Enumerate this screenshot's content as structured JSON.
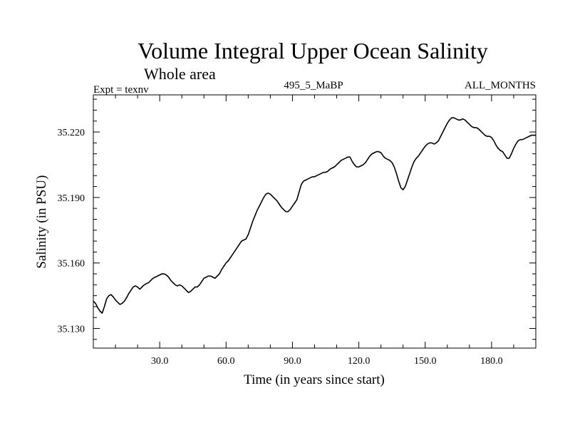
{
  "chart_data": {
    "type": "line",
    "title": "Volume Integral Upper Ocean Salinity",
    "subtitle": "Whole area",
    "expt_label": "Expt = texnv",
    "run_label": "495_5_MaBP",
    "months_label": "ALL_MONTHS",
    "xlabel": "Time (in years since start)",
    "ylabel": "Salinity (in PSU)",
    "xlim": [
      0,
      200
    ],
    "ylim": [
      35.121,
      35.237
    ],
    "x_ticks": [
      30,
      60,
      90,
      120,
      150,
      180
    ],
    "x_tick_labels": [
      "30.0",
      "60.0",
      "90.0",
      "120.0",
      "150.0",
      "180.0"
    ],
    "y_ticks": [
      35.13,
      35.16,
      35.19,
      35.22
    ],
    "y_tick_labels": [
      "35.130",
      "35.160",
      "35.190",
      "35.220"
    ],
    "series": [
      {
        "name": "Salinity",
        "color": "#000000",
        "x": [
          0,
          1,
          2,
          3,
          4,
          5,
          6,
          7,
          8,
          9,
          10,
          11,
          12,
          13,
          14,
          15,
          16,
          17,
          18,
          19,
          20,
          21,
          22,
          23,
          24,
          25,
          26,
          27,
          28,
          29,
          30,
          31,
          32,
          33,
          34,
          35,
          36,
          37,
          38,
          39,
          40,
          41,
          42,
          43,
          44,
          45,
          46,
          47,
          48,
          49,
          50,
          51,
          52,
          53,
          54,
          55,
          56,
          57,
          58,
          59,
          60,
          61,
          62,
          63,
          64,
          65,
          66,
          67,
          68,
          69,
          70,
          71,
          72,
          73,
          74,
          75,
          76,
          77,
          78,
          79,
          80,
          81,
          82,
          83,
          84,
          85,
          86,
          87,
          88,
          89,
          90,
          91,
          92,
          93,
          94,
          95,
          96,
          97,
          98,
          99,
          100,
          101,
          102,
          103,
          104,
          105,
          106,
          107,
          108,
          109,
          110,
          111,
          112,
          113,
          114,
          115,
          116,
          117,
          118,
          119,
          120,
          121,
          122,
          123,
          124,
          125,
          126,
          127,
          128,
          129,
          130,
          131,
          132,
          133,
          134,
          135,
          136,
          137,
          138,
          139,
          140,
          141,
          142,
          143,
          144,
          145,
          146,
          147,
          148,
          149,
          150,
          151,
          152,
          153,
          154,
          155,
          156,
          157,
          158,
          159,
          160,
          161,
          162,
          163,
          164,
          165,
          166,
          167,
          168,
          169,
          170,
          171,
          172,
          173,
          174,
          175,
          176,
          177,
          178,
          179,
          180,
          181,
          182,
          183,
          184,
          185,
          186,
          187,
          188,
          189,
          190,
          191,
          192,
          193,
          194,
          195,
          196,
          197,
          198,
          199,
          200
        ],
        "y": [
          35.1425,
          35.1415,
          35.1395,
          35.138,
          35.137,
          35.14,
          35.1435,
          35.145,
          35.1455,
          35.1445,
          35.143,
          35.142,
          35.141,
          35.1415,
          35.1425,
          35.144,
          35.146,
          35.1475,
          35.149,
          35.1495,
          35.149,
          35.148,
          35.149,
          35.15,
          35.1505,
          35.151,
          35.152,
          35.153,
          35.1535,
          35.154,
          35.1545,
          35.155,
          35.155,
          35.1545,
          35.1535,
          35.152,
          35.151,
          35.15,
          35.1495,
          35.15,
          35.1495,
          35.1485,
          35.1475,
          35.1465,
          35.147,
          35.148,
          35.149,
          35.149,
          35.15,
          35.1515,
          35.153,
          35.1535,
          35.154,
          35.154,
          35.1535,
          35.153,
          35.154,
          35.155,
          35.157,
          35.1585,
          35.16,
          35.161,
          35.1625,
          35.164,
          35.1655,
          35.167,
          35.1685,
          35.17,
          35.1705,
          35.171,
          35.173,
          35.176,
          35.179,
          35.1815,
          35.184,
          35.186,
          35.188,
          35.19,
          35.1915,
          35.192,
          35.1915,
          35.1905,
          35.1895,
          35.1885,
          35.187,
          35.1855,
          35.1845,
          35.1835,
          35.1835,
          35.1845,
          35.186,
          35.1875,
          35.189,
          35.1925,
          35.196,
          35.1975,
          35.198,
          35.1985,
          35.199,
          35.1995,
          35.1995,
          35.2,
          35.2005,
          35.201,
          35.2015,
          35.2015,
          35.202,
          35.203,
          35.2035,
          35.204,
          35.205,
          35.206,
          35.207,
          35.2075,
          35.208,
          35.2085,
          35.2085,
          35.2065,
          35.205,
          35.204,
          35.204,
          35.2045,
          35.205,
          35.206,
          35.2075,
          35.209,
          35.21,
          35.2105,
          35.211,
          35.211,
          35.2105,
          35.209,
          35.208,
          35.2075,
          35.207,
          35.206,
          35.204,
          35.201,
          35.1975,
          35.1945,
          35.1935,
          35.195,
          35.198,
          35.201,
          35.204,
          35.2065,
          35.208,
          35.209,
          35.2105,
          35.212,
          35.2135,
          35.2145,
          35.215,
          35.215,
          35.2145,
          35.215,
          35.216,
          35.218,
          35.22,
          35.222,
          35.224,
          35.2255,
          35.2265,
          35.2265,
          35.226,
          35.2255,
          35.2255,
          35.226,
          35.2255,
          35.2245,
          35.2235,
          35.2225,
          35.222,
          35.222,
          35.2215,
          35.2205,
          35.2195,
          35.2185,
          35.218,
          35.218,
          35.2175,
          35.216,
          35.214,
          35.2125,
          35.2115,
          35.211,
          35.2095,
          35.208,
          35.208,
          35.21,
          35.2125,
          35.2145,
          35.216,
          35.2165,
          35.2165,
          35.217,
          35.2175,
          35.218,
          35.2185,
          35.2185,
          35.2185
        ]
      }
    ]
  }
}
